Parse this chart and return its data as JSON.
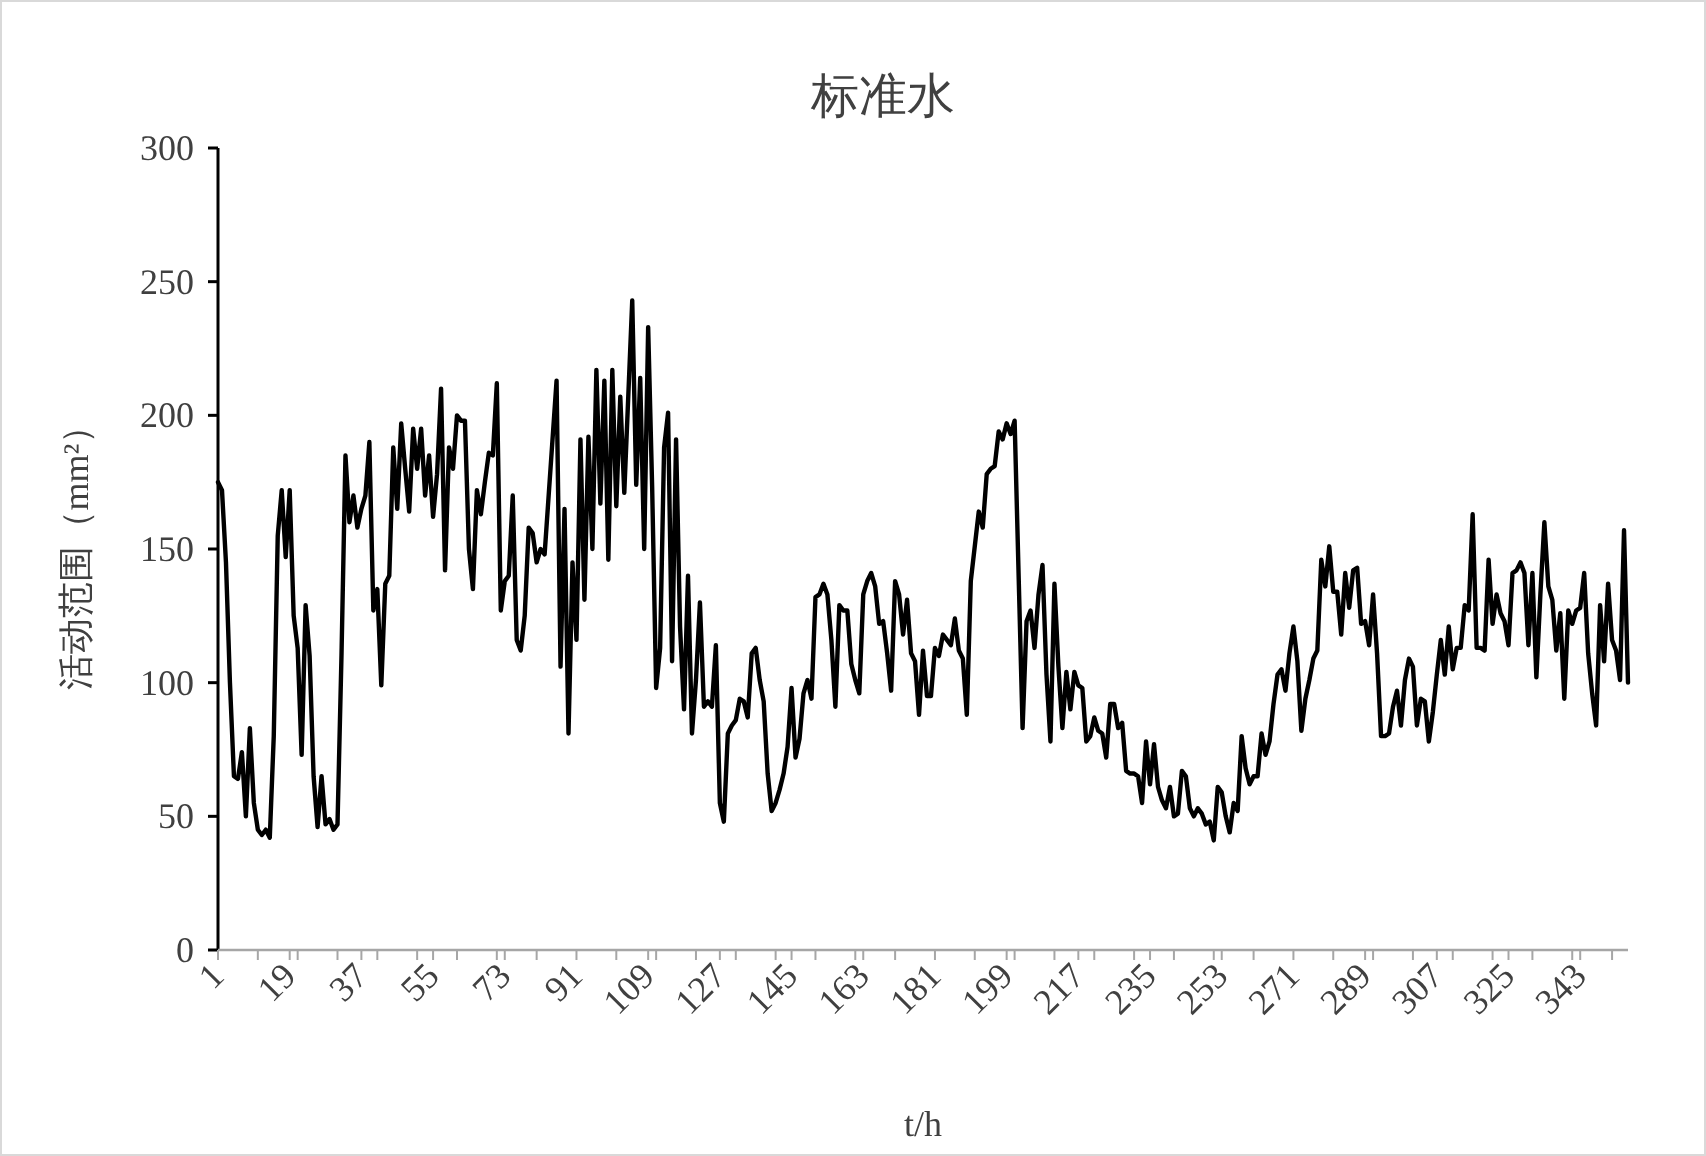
{
  "chart_data": {
    "type": "line",
    "title": "标准水",
    "xlabel": "t/h",
    "ylabel": "活动范围（mm²）",
    "xlim": [
      1,
      355
    ],
    "xticks": [
      1,
      19,
      37,
      55,
      73,
      91,
      109,
      127,
      145,
      163,
      181,
      199,
      217,
      235,
      253,
      271,
      289,
      307,
      325,
      343,
      {
        "value": 11,
        "label": null
      },
      {
        "value": 21,
        "label": null
      },
      {
        "value": 31,
        "label": null
      },
      {
        "value": 41,
        "label": null
      },
      {
        "value": 51,
        "label": null
      },
      {
        "value": 61,
        "label": null
      },
      {
        "value": 71,
        "label": null
      },
      {
        "value": 81,
        "label": null
      },
      {
        "value": 101,
        "label": null
      },
      {
        "value": 111,
        "label": null
      },
      {
        "value": 121,
        "label": null
      },
      {
        "value": 131,
        "label": null
      },
      {
        "value": 141,
        "label": null
      },
      {
        "value": 151,
        "label": null
      },
      {
        "value": 161,
        "label": null
      },
      {
        "value": 171,
        "label": null
      },
      {
        "value": 191,
        "label": null
      },
      {
        "value": 201,
        "label": null
      },
      {
        "value": 211,
        "label": null
      },
      {
        "value": 221,
        "label": null
      },
      {
        "value": 231,
        "label": null
      },
      {
        "value": 241,
        "label": null
      },
      {
        "value": 251,
        "label": null
      },
      {
        "value": 261,
        "label": null
      },
      {
        "value": 281,
        "label": null
      },
      {
        "value": 291,
        "label": null
      },
      {
        "value": 301,
        "label": null
      },
      {
        "value": 311,
        "label": null
      },
      {
        "value": 321,
        "label": null
      },
      {
        "value": 331,
        "label": null
      },
      {
        "value": 341,
        "label": null
      },
      {
        "value": 351,
        "label": null
      }
    ],
    "ylim": [
      0,
      300
    ],
    "yticks": [
      0,
      50,
      100,
      150,
      200,
      250,
      300
    ],
    "grid": false,
    "marker": "none",
    "line_style": "solid",
    "series": [
      {
        "color": "#000000",
        "x": [
          1,
          2,
          3,
          4,
          5,
          6,
          7,
          8,
          9,
          10,
          11,
          12,
          13,
          14,
          15,
          16,
          17,
          18,
          19,
          20,
          21,
          22,
          23,
          24,
          25,
          26,
          27,
          28,
          29,
          30,
          31,
          32,
          33,
          34,
          35,
          36,
          37,
          38,
          39,
          40,
          41,
          42,
          43,
          44,
          45,
          46,
          47,
          48,
          49,
          50,
          51,
          52,
          53,
          54,
          55,
          56,
          57,
          58,
          59,
          60,
          61,
          62,
          63,
          64,
          65,
          66,
          67,
          68,
          69,
          70,
          71,
          72,
          73,
          74,
          75,
          76,
          77,
          78,
          79,
          80,
          81,
          82,
          83,
          86,
          87,
          88,
          89,
          90,
          91,
          92,
          93,
          94,
          95,
          96,
          97,
          98,
          99,
          100,
          101,
          102,
          103,
          105,
          106,
          107,
          108,
          109,
          110,
          111,
          112,
          113,
          114,
          115,
          116,
          117,
          118,
          119,
          120,
          121,
          122,
          123,
          124,
          125,
          126,
          127,
          128,
          129,
          130,
          131,
          132,
          133,
          134,
          135,
          136,
          137,
          138,
          139,
          140,
          141,
          142,
          143,
          144,
          145,
          146,
          147,
          148,
          149,
          150,
          151,
          152,
          153,
          154,
          155,
          156,
          157,
          158,
          159,
          160,
          161,
          162,
          163,
          164,
          165,
          166,
          167,
          168,
          169,
          170,
          171,
          172,
          173,
          174,
          175,
          176,
          177,
          178,
          179,
          180,
          181,
          182,
          183,
          184,
          185,
          186,
          187,
          188,
          189,
          190,
          191,
          192,
          193,
          194,
          195,
          196,
          197,
          198,
          199,
          200,
          201,
          203,
          204,
          205,
          206,
          207,
          208,
          209,
          210,
          211,
          212,
          213,
          214,
          215,
          216,
          217,
          218,
          219,
          220,
          221,
          222,
          223,
          224,
          225,
          226,
          227,
          228,
          229,
          230,
          231,
          232,
          233,
          234,
          235,
          236,
          237,
          238,
          239,
          240,
          241,
          242,
          243,
          244,
          245,
          246,
          247,
          248,
          249,
          250,
          251,
          252,
          253,
          254,
          255,
          256,
          257,
          258,
          259,
          260,
          261,
          262,
          263,
          264,
          265,
          266,
          267,
          268,
          269,
          270,
          271,
          272,
          273,
          274,
          275,
          276,
          277,
          278,
          279,
          280,
          281,
          282,
          283,
          284,
          285,
          286,
          287,
          288,
          289,
          290,
          291,
          292,
          293,
          294,
          295,
          296,
          297,
          298,
          299,
          300,
          301,
          302,
          303,
          304,
          305,
          306,
          307,
          308,
          309,
          310,
          311,
          312,
          313,
          314,
          315,
          316,
          317,
          318,
          319,
          320,
          321,
          322,
          323,
          324,
          325,
          326,
          327,
          328,
          329,
          330,
          331,
          332,
          333,
          334,
          335,
          336,
          337,
          338,
          339,
          340,
          341,
          342,
          343,
          344,
          345,
          346,
          347,
          348,
          349,
          350,
          351,
          352,
          353,
          354,
          355
        ],
        "values": [
          175,
          172,
          145,
          100,
          65,
          64,
          74,
          50,
          83,
          55,
          45,
          43,
          45,
          42,
          80,
          155,
          172,
          147,
          172,
          125,
          113,
          73,
          129,
          110,
          65,
          46,
          65,
          47,
          49,
          45,
          47,
          110,
          185,
          160,
          170,
          158,
          165,
          170,
          190,
          127,
          135,
          99,
          137,
          140,
          188,
          165,
          197,
          180,
          164,
          195,
          180,
          195,
          170,
          185,
          162,
          178,
          210,
          142,
          188,
          180,
          200,
          198,
          198,
          150,
          135,
          172,
          163,
          175,
          186,
          185,
          212,
          127,
          138,
          140,
          170,
          116,
          112,
          125,
          158,
          156,
          145,
          150,
          148,
          213,
          106,
          165,
          81,
          145,
          116,
          191,
          131,
          192,
          150,
          217,
          167,
          213,
          146,
          217,
          166,
          207,
          171,
          243,
          174,
          214,
          150,
          233,
          173,
          98,
          113,
          188,
          201,
          108,
          191,
          121,
          90,
          140,
          81,
          101,
          130,
          91,
          93,
          91,
          114,
          55,
          48,
          81,
          84,
          86,
          94,
          93,
          87,
          111,
          113,
          101,
          93,
          66,
          52,
          55,
          60,
          66,
          76,
          98,
          72,
          79,
          96,
          101,
          94,
          132,
          133,
          137,
          133,
          116,
          91,
          129,
          127,
          127,
          107,
          101,
          96,
          133,
          138,
          141,
          136,
          122,
          123,
          111,
          97,
          138,
          133,
          118,
          131,
          111,
          108,
          88,
          112,
          95,
          95,
          113,
          110,
          118,
          116,
          114,
          124,
          112,
          109,
          88,
          138,
          151,
          164,
          158,
          178,
          180,
          181,
          194,
          191,
          197,
          193,
          198,
          83,
          123,
          127,
          113,
          133,
          144,
          103,
          78,
          137,
          106,
          83,
          104,
          90,
          104,
          99,
          98,
          78,
          80,
          87,
          82,
          81,
          72,
          92,
          92,
          83,
          85,
          67,
          66,
          66,
          65,
          55,
          78,
          62,
          77,
          61,
          56,
          53,
          61,
          50,
          51,
          67,
          65,
          53,
          50,
          53,
          51,
          47,
          48,
          41,
          61,
          59,
          50,
          44,
          55,
          52,
          80,
          68,
          62,
          65,
          65,
          81,
          73,
          78,
          92,
          103,
          105,
          97,
          111,
          121,
          108,
          82,
          94,
          101,
          109,
          112,
          146,
          136,
          151,
          134,
          134,
          118,
          141,
          128,
          142,
          143,
          122,
          123,
          114,
          133,
          111,
          80,
          80,
          81,
          91,
          97,
          84,
          101,
          109,
          106,
          84,
          94,
          93,
          78,
          89,
          103,
          116,
          103,
          121,
          105,
          113,
          113,
          129,
          127,
          163,
          113,
          113,
          112,
          146,
          122,
          133,
          126,
          123,
          114,
          141,
          142,
          145,
          141,
          114,
          141,
          102,
          133,
          160,
          136,
          131,
          112,
          126,
          94,
          127,
          122,
          127,
          128,
          141,
          111,
          96,
          84,
          129,
          108,
          137,
          116,
          112,
          101,
          157,
          100
        ]
      }
    ]
  }
}
